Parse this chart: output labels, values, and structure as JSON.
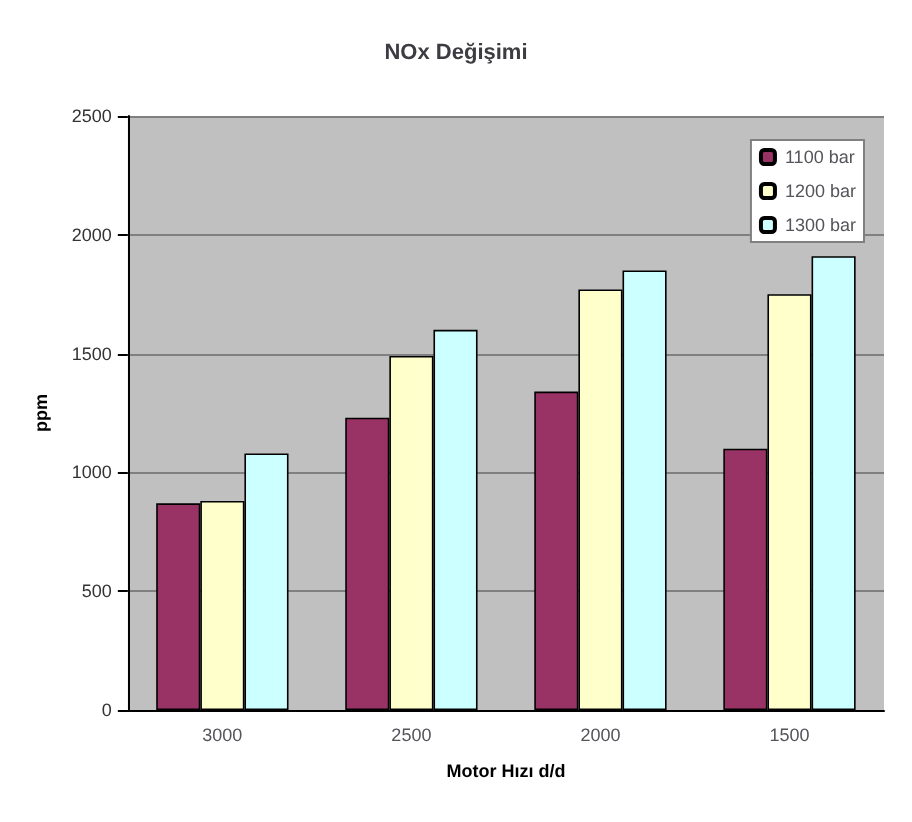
{
  "chart_data": {
    "type": "bar",
    "title": "NOx Değişimi",
    "xlabel": "Motor Hızı d/d",
    "ylabel": "ppm",
    "categories": [
      "3000",
      "2500",
      "2000",
      "1500"
    ],
    "series": [
      {
        "name": "1100 bar",
        "color": "#993366",
        "values": [
          870,
          1230,
          1340,
          1100
        ]
      },
      {
        "name": "1200 bar",
        "color": "#ffffcc",
        "values": [
          880,
          1490,
          1770,
          1750
        ]
      },
      {
        "name": "1300 bar",
        "color": "#ccffff",
        "values": [
          1080,
          1600,
          1850,
          1910
        ]
      }
    ],
    "ylim": [
      0,
      2500
    ],
    "yticks": [
      0,
      500,
      1000,
      1500,
      2000,
      2500
    ],
    "grid": "y",
    "legend": "top right"
  }
}
